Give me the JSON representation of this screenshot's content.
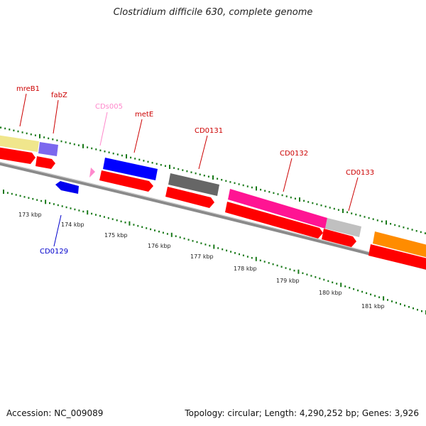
{
  "title": "Clostridium difficile 630, complete genome",
  "footer": {
    "accession": "Accession: NC_009089",
    "topology": "Topology: circular; Length: 4,290,252 bp; Genes: 3,926"
  },
  "colors": {
    "tick": "#1a7a1a",
    "backbone": "#8a8a8a",
    "cds_forward": "#ff0000",
    "label_red": "#cc0000",
    "label_blue": "#0000cc",
    "label_pink": "#ff88cc"
  },
  "genes": [
    {
      "name": "mreB1",
      "color": "#f0e68c",
      "label_color": "#cc0000"
    },
    {
      "name": "fabZ",
      "color": "#7b68ee",
      "label_color": "#cc0000"
    },
    {
      "name": "CDs005",
      "color": "#ff88cc",
      "label_color": "#ff88cc"
    },
    {
      "name": "metE",
      "color": "#0000ff",
      "label_color": "#cc0000"
    },
    {
      "name": "CD0131",
      "color": "#666666",
      "label_color": "#cc0000"
    },
    {
      "name": "CD0132",
      "color": "#ff1493",
      "label_color": "#cc0000"
    },
    {
      "name": "CD0133",
      "color": "#c0c0c0",
      "label_color": "#cc0000"
    },
    {
      "name": "CD0129",
      "color": "#0000ff",
      "label_color": "#0000cc"
    }
  ],
  "kbp_labels": [
    "173 kbp",
    "174 kbp",
    "175 kbp",
    "176 kbp",
    "177 kbp",
    "178 kbp",
    "179 kbp",
    "180 kbp",
    "181 kbp"
  ]
}
